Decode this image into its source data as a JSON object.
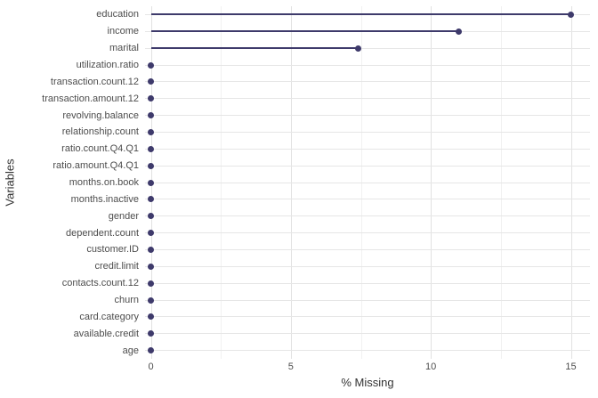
{
  "chart_data": {
    "type": "scatter",
    "variant": "horizontal-lollipop",
    "title": "",
    "xlabel": "% Missing",
    "ylabel": "Variables",
    "categories": [
      "education",
      "income",
      "marital",
      "utilization.ratio",
      "transaction.count.12",
      "transaction.amount.12",
      "revolving.balance",
      "relationship.count",
      "ratio.count.Q4.Q1",
      "ratio.amount.Q4.Q1",
      "months.on.book",
      "months.inactive",
      "gender",
      "dependent.count",
      "customer.ID",
      "credit.limit",
      "contacts.count.12",
      "churn",
      "card.category",
      "available.credit",
      "age"
    ],
    "values": [
      15,
      11,
      7.4,
      0,
      0,
      0,
      0,
      0,
      0,
      0,
      0,
      0,
      0,
      0,
      0,
      0,
      0,
      0,
      0,
      0,
      0
    ],
    "xlim": [
      0,
      15
    ],
    "x_ticks": [
      0,
      5,
      10,
      15
    ],
    "x_minor_ticks": [
      2.5,
      7.5,
      12.5
    ],
    "grid": true,
    "legend_position": "none",
    "colors": {
      "series": "#3e3a6b",
      "grid_major": "#e2e2e2",
      "grid_minor": "#f1f1f1",
      "axis_text": "#4d4d4d",
      "background": "#ffffff"
    }
  }
}
